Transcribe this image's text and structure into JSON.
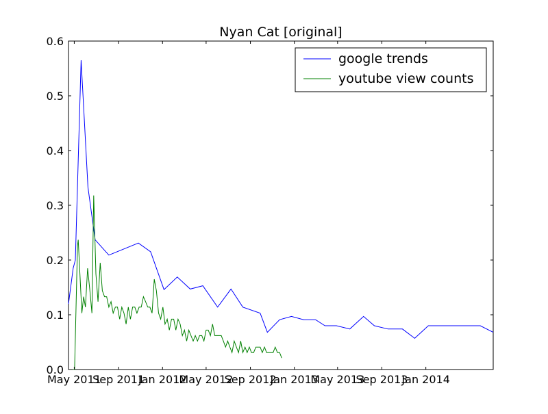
{
  "chart_data": {
    "type": "line",
    "title": "Nyan Cat [original]",
    "xlabel": "",
    "ylabel": "",
    "x_axis_type": "date",
    "xlim": [
      "2011-04-15",
      "2014-07-07"
    ],
    "ylim": [
      0.0,
      0.6
    ],
    "y_ticks": [
      "0.0",
      "0.1",
      "0.2",
      "0.3",
      "0.4",
      "0.5",
      "0.6"
    ],
    "x_ticks": [
      {
        "date": "2011-05-01",
        "label": "May 2011"
      },
      {
        "date": "2011-09-01",
        "label": "Sep 2011"
      },
      {
        "date": "2012-01-01",
        "label": "Jan 2012"
      },
      {
        "date": "2012-05-01",
        "label": "May 2012"
      },
      {
        "date": "2012-09-01",
        "label": "Sep 2012"
      },
      {
        "date": "2013-01-01",
        "label": "Jan 2013"
      },
      {
        "date": "2013-05-01",
        "label": "May 2013"
      },
      {
        "date": "2013-09-01",
        "label": "Sep 2013"
      },
      {
        "date": "2014-01-01",
        "label": "Jan 2014"
      }
    ],
    "grid": false,
    "legend_position": "top-right",
    "series": [
      {
        "name": "google trends",
        "color": "#0000ff",
        "points": [
          [
            "2011-04-15",
            0.12
          ],
          [
            "2011-04-28",
            0.185
          ],
          [
            "2011-05-04",
            0.2
          ],
          [
            "2011-05-20",
            0.565
          ],
          [
            "2011-06-08",
            0.333
          ],
          [
            "2011-06-28",
            0.237
          ],
          [
            "2011-08-05",
            0.209
          ],
          [
            "2011-10-26",
            0.231
          ],
          [
            "2011-11-29",
            0.215
          ],
          [
            "2012-01-05",
            0.146
          ],
          [
            "2012-02-11",
            0.169
          ],
          [
            "2012-03-18",
            0.147
          ],
          [
            "2012-04-22",
            0.153
          ],
          [
            "2012-06-02",
            0.114
          ],
          [
            "2012-07-09",
            0.147
          ],
          [
            "2012-08-11",
            0.114
          ],
          [
            "2012-09-28",
            0.103
          ],
          [
            "2012-10-18",
            0.068
          ],
          [
            "2012-11-21",
            0.091
          ],
          [
            "2012-12-24",
            0.097
          ],
          [
            "2013-01-27",
            0.091
          ],
          [
            "2013-03-01",
            0.091
          ],
          [
            "2013-03-27",
            0.08
          ],
          [
            "2013-04-28",
            0.08
          ],
          [
            "2013-06-04",
            0.074
          ],
          [
            "2013-07-12",
            0.097
          ],
          [
            "2013-08-11",
            0.08
          ],
          [
            "2013-09-18",
            0.074
          ],
          [
            "2013-10-28",
            0.074
          ],
          [
            "2013-12-01",
            0.057
          ],
          [
            "2014-01-08",
            0.08
          ],
          [
            "2014-06-01",
            0.08
          ],
          [
            "2014-07-07",
            0.068
          ]
        ]
      },
      {
        "name": "youtube view counts",
        "color": "#008000",
        "points": [
          [
            "2011-04-27",
            0.0
          ],
          [
            "2011-05-02",
            0.0
          ],
          [
            "2011-05-10",
            0.226
          ],
          [
            "2011-05-12",
            0.237
          ],
          [
            "2011-05-22",
            0.103
          ],
          [
            "2011-05-27",
            0.133
          ],
          [
            "2011-06-01",
            0.114
          ],
          [
            "2011-06-07",
            0.185
          ],
          [
            "2011-06-13",
            0.147
          ],
          [
            "2011-06-19",
            0.103
          ],
          [
            "2011-06-24",
            0.318
          ],
          [
            "2011-06-30",
            0.175
          ],
          [
            "2011-07-06",
            0.124
          ],
          [
            "2011-07-12",
            0.195
          ],
          [
            "2011-07-18",
            0.144
          ],
          [
            "2011-07-24",
            0.133
          ],
          [
            "2011-07-30",
            0.133
          ],
          [
            "2011-08-05",
            0.114
          ],
          [
            "2011-08-11",
            0.124
          ],
          [
            "2011-08-17",
            0.103
          ],
          [
            "2011-08-23",
            0.114
          ],
          [
            "2011-08-29",
            0.114
          ],
          [
            "2011-09-04",
            0.092
          ],
          [
            "2011-09-10",
            0.114
          ],
          [
            "2011-09-16",
            0.103
          ],
          [
            "2011-09-22",
            0.083
          ],
          [
            "2011-09-28",
            0.114
          ],
          [
            "2011-10-04",
            0.092
          ],
          [
            "2011-10-10",
            0.114
          ],
          [
            "2011-10-16",
            0.114
          ],
          [
            "2011-10-22",
            0.103
          ],
          [
            "2011-10-28",
            0.114
          ],
          [
            "2011-11-03",
            0.114
          ],
          [
            "2011-11-09",
            0.133
          ],
          [
            "2011-11-15",
            0.124
          ],
          [
            "2011-11-21",
            0.114
          ],
          [
            "2011-11-27",
            0.114
          ],
          [
            "2011-12-03",
            0.103
          ],
          [
            "2011-12-09",
            0.165
          ],
          [
            "2011-12-15",
            0.144
          ],
          [
            "2011-12-21",
            0.103
          ],
          [
            "2011-12-27",
            0.092
          ],
          [
            "2012-01-02",
            0.114
          ],
          [
            "2012-01-08",
            0.083
          ],
          [
            "2012-01-14",
            0.092
          ],
          [
            "2012-01-20",
            0.072
          ],
          [
            "2012-01-26",
            0.092
          ],
          [
            "2012-02-01",
            0.092
          ],
          [
            "2012-02-07",
            0.072
          ],
          [
            "2012-02-13",
            0.092
          ],
          [
            "2012-02-19",
            0.083
          ],
          [
            "2012-02-25",
            0.062
          ],
          [
            "2012-03-02",
            0.072
          ],
          [
            "2012-03-08",
            0.052
          ],
          [
            "2012-03-14",
            0.072
          ],
          [
            "2012-03-20",
            0.062
          ],
          [
            "2012-03-26",
            0.052
          ],
          [
            "2012-04-01",
            0.062
          ],
          [
            "2012-04-07",
            0.052
          ],
          [
            "2012-04-13",
            0.062
          ],
          [
            "2012-04-19",
            0.062
          ],
          [
            "2012-04-25",
            0.052
          ],
          [
            "2012-05-01",
            0.072
          ],
          [
            "2012-05-07",
            0.072
          ],
          [
            "2012-05-13",
            0.062
          ],
          [
            "2012-05-19",
            0.083
          ],
          [
            "2012-05-25",
            0.062
          ],
          [
            "2012-05-31",
            0.062
          ],
          [
            "2012-06-06",
            0.062
          ],
          [
            "2012-06-12",
            0.062
          ],
          [
            "2012-06-18",
            0.052
          ],
          [
            "2012-06-24",
            0.041
          ],
          [
            "2012-06-30",
            0.052
          ],
          [
            "2012-07-06",
            0.041
          ],
          [
            "2012-07-12",
            0.031
          ],
          [
            "2012-07-18",
            0.052
          ],
          [
            "2012-07-24",
            0.041
          ],
          [
            "2012-07-30",
            0.031
          ],
          [
            "2012-08-05",
            0.052
          ],
          [
            "2012-08-11",
            0.031
          ],
          [
            "2012-08-17",
            0.041
          ],
          [
            "2012-08-23",
            0.031
          ],
          [
            "2012-08-29",
            0.041
          ],
          [
            "2012-09-04",
            0.031
          ],
          [
            "2012-09-10",
            0.031
          ],
          [
            "2012-09-16",
            0.041
          ],
          [
            "2012-09-22",
            0.041
          ],
          [
            "2012-09-28",
            0.041
          ],
          [
            "2012-10-04",
            0.031
          ],
          [
            "2012-10-10",
            0.041
          ],
          [
            "2012-10-16",
            0.031
          ],
          [
            "2012-10-22",
            0.031
          ],
          [
            "2012-10-28",
            0.031
          ],
          [
            "2012-11-03",
            0.031
          ],
          [
            "2012-11-09",
            0.041
          ],
          [
            "2012-11-15",
            0.031
          ],
          [
            "2012-11-21",
            0.031
          ],
          [
            "2012-11-27",
            0.021
          ]
        ]
      }
    ]
  }
}
